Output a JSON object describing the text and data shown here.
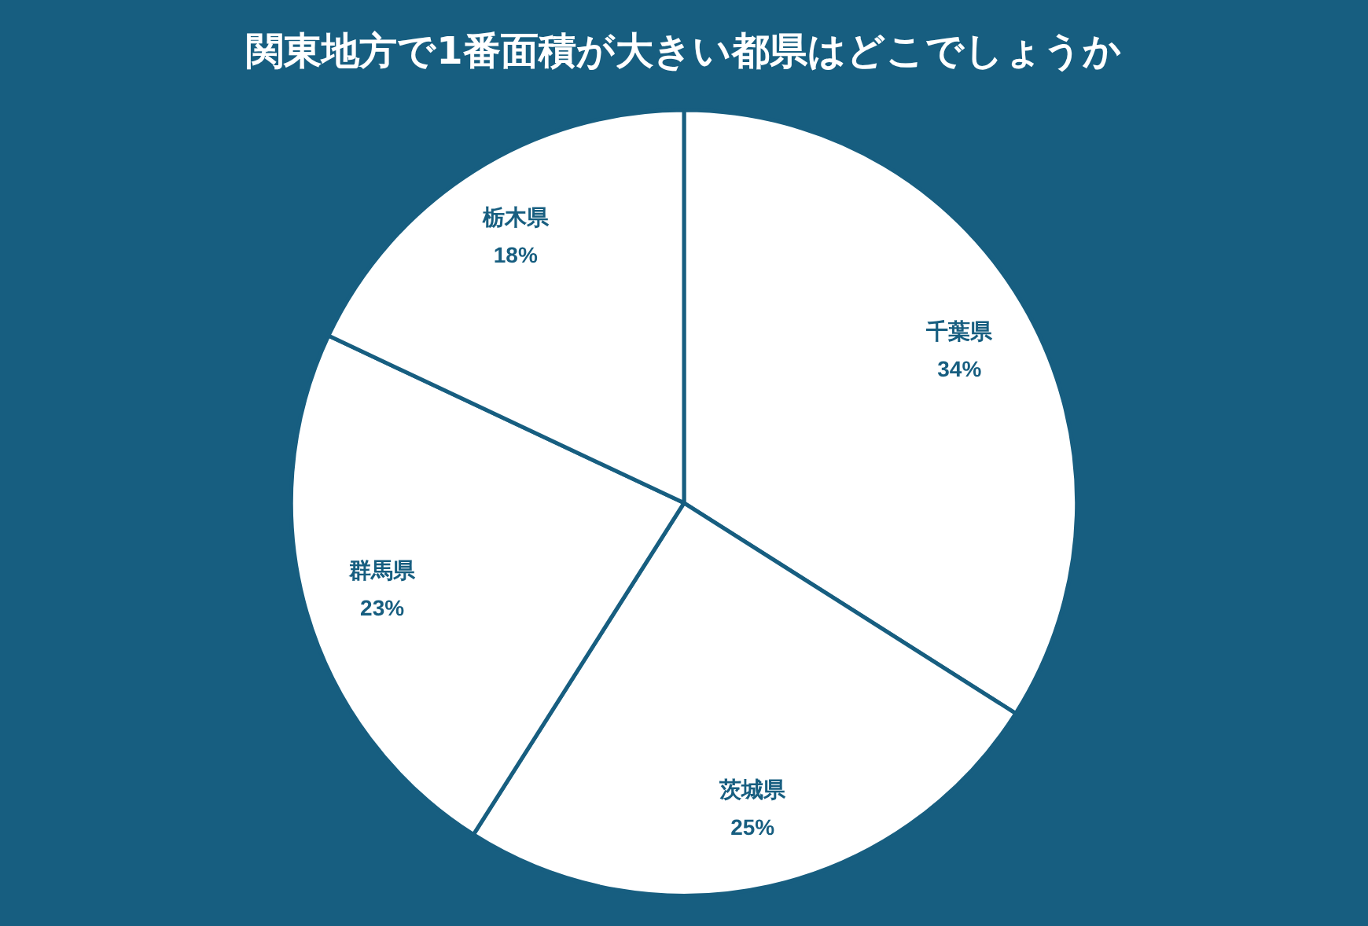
{
  "chart_data": {
    "type": "pie",
    "title": "関東地方で1番面積が大きい都県はどこでしょうか",
    "categories": [
      "千葉県",
      "茨城県",
      "群馬県",
      "栃木県"
    ],
    "values": [
      34,
      25,
      23,
      18
    ],
    "value_labels": [
      "34%",
      "25%",
      "23%",
      "18%"
    ],
    "colors": [
      "#ffffff",
      "#ffffff",
      "#ffffff",
      "#ffffff"
    ],
    "legend": false
  }
}
